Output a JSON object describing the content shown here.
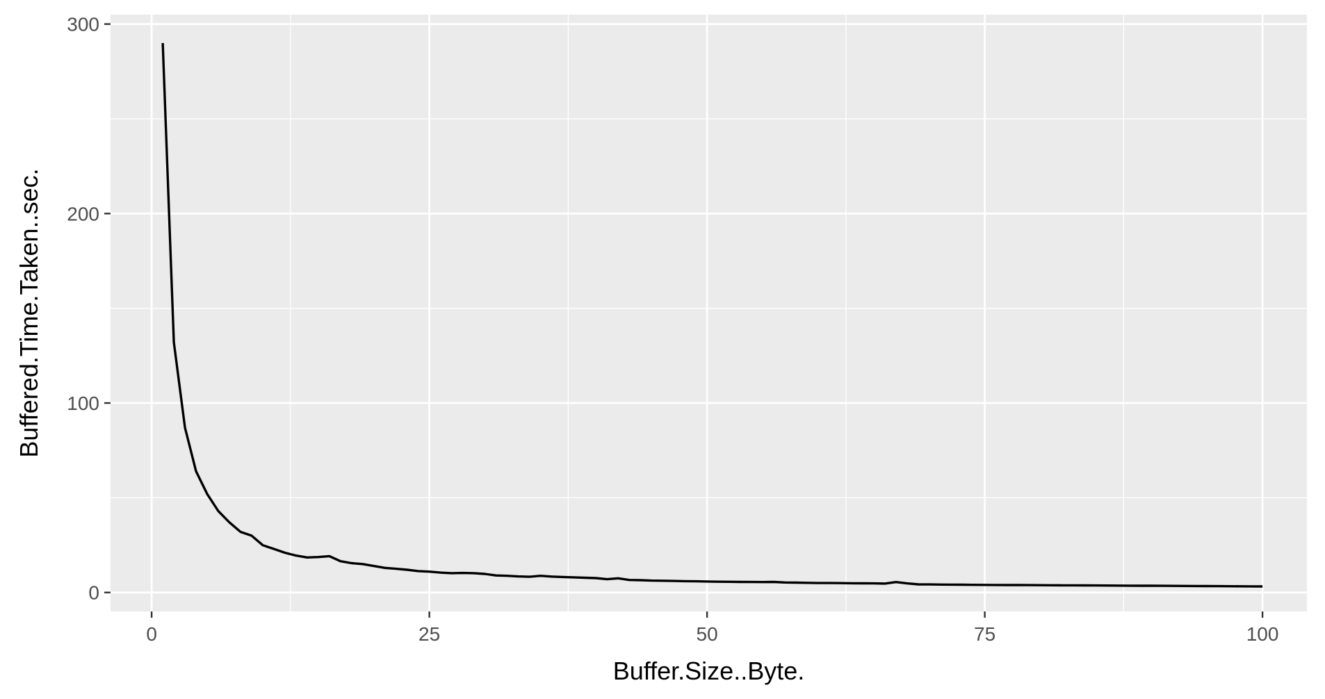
{
  "chart_data": {
    "type": "line",
    "title": "",
    "xlabel": "Buffer.Size..Byte.",
    "ylabel": "Buffered.Time.Taken..sec.",
    "xlim": [
      -3.7,
      104
    ],
    "ylim": [
      -10,
      305
    ],
    "x_ticks": [
      0,
      25,
      50,
      75,
      100
    ],
    "x_tick_labels": [
      "0",
      "25",
      "50",
      "75",
      "100"
    ],
    "y_ticks": [
      0,
      100,
      200,
      300
    ],
    "y_tick_labels": [
      "0",
      "100",
      "200",
      "300"
    ],
    "grid": true,
    "legend": "none",
    "colors": {
      "panel": "#ebebeb",
      "grid": "#ffffff",
      "line": "#000000",
      "tick_label": "#4d4d4d",
      "tick_mark": "#333333"
    },
    "series": [
      {
        "x": [
          1,
          2,
          3,
          4,
          5,
          6,
          7,
          8,
          9,
          10,
          11,
          12,
          13,
          14,
          15,
          16,
          17,
          18,
          19,
          20,
          21,
          22,
          23,
          24,
          25,
          26,
          27,
          28,
          29,
          30,
          31,
          32,
          33,
          34,
          35,
          36,
          37,
          38,
          39,
          40,
          41,
          42,
          43,
          44,
          45,
          46,
          47,
          48,
          49,
          50,
          51,
          52,
          53,
          54,
          55,
          56,
          57,
          58,
          59,
          60,
          61,
          62,
          63,
          64,
          65,
          66,
          67,
          68,
          69,
          70,
          71,
          72,
          73,
          74,
          75,
          76,
          77,
          78,
          79,
          80,
          81,
          82,
          83,
          84,
          85,
          86,
          87,
          88,
          89,
          90,
          91,
          92,
          93,
          94,
          95,
          96,
          97,
          98,
          99,
          100
        ],
        "y": [
          290,
          132,
          87,
          64,
          52,
          43,
          37,
          32,
          30,
          25,
          23,
          21,
          19.5,
          18.5,
          18.7,
          19.2,
          16.5,
          15.5,
          15,
          14,
          13,
          12.5,
          12,
          11.3,
          11,
          10.5,
          10.2,
          10.3,
          10.2,
          9.8,
          9,
          8.8,
          8.5,
          8.3,
          8.8,
          8.4,
          8.2,
          8,
          7.8,
          7.6,
          7,
          7.5,
          6.6,
          6.5,
          6.3,
          6.2,
          6.1,
          6,
          5.9,
          5.8,
          5.7,
          5.65,
          5.6,
          5.55,
          5.5,
          5.6,
          5.3,
          5.2,
          5.1,
          5.0,
          5.0,
          4.95,
          4.9,
          4.85,
          4.8,
          4.7,
          5.5,
          4.8,
          4.3,
          4.25,
          4.2,
          4.15,
          4.1,
          4.05,
          4.0,
          3.98,
          3.95,
          3.92,
          3.9,
          3.87,
          3.84,
          3.8,
          3.77,
          3.74,
          3.71,
          3.68,
          3.65,
          3.62,
          3.58,
          3.55,
          3.52,
          3.48,
          3.45,
          3.42,
          3.38,
          3.35,
          3.32,
          3.28,
          3.25,
          3.2
        ]
      }
    ]
  }
}
